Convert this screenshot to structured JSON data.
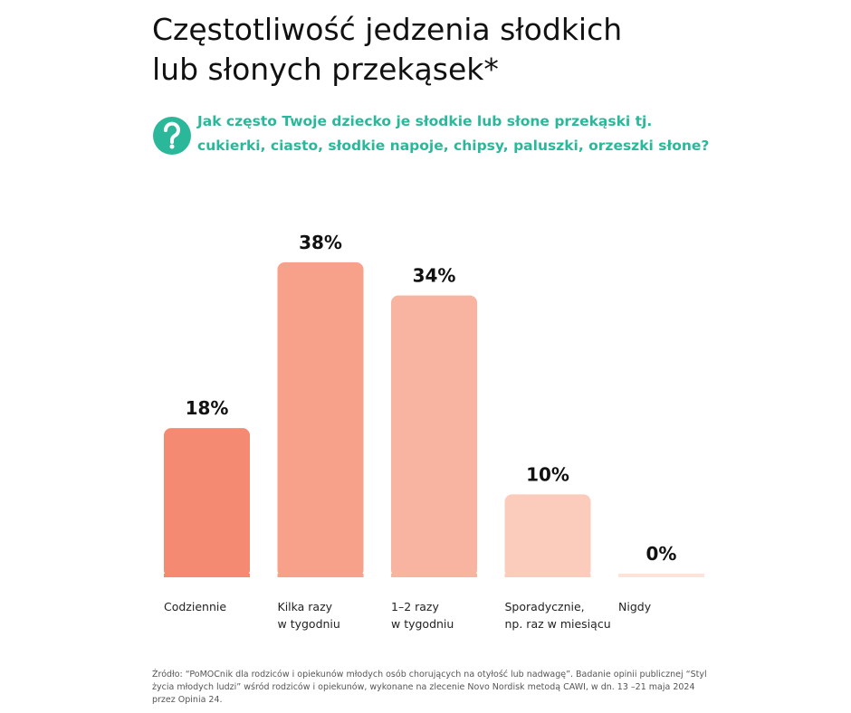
{
  "chart_data": {
    "type": "bar",
    "title": [
      "Częstotliwość jedzenia słodkich",
      "lub słonych przekąsek*"
    ],
    "subtitle": [
      "Jak często Twoje dziecko je słodkie lub słone przekąski tj.",
      "cukierki, ciasto, słodkie napoje, chipsy, paluszki, orzeszki słone?"
    ],
    "categories": [
      [
        "Codziennie"
      ],
      [
        "Kilka razy",
        "w tygodniu"
      ],
      [
        "1–2 razy",
        "w tygodniu"
      ],
      [
        "Sporadycznie,",
        "np. raz w miesiącu"
      ],
      [
        "Nigdy"
      ]
    ],
    "values": [
      18,
      38,
      34,
      10,
      0
    ],
    "value_labels": [
      "18%",
      "38%",
      "34%",
      "10%",
      "0%"
    ],
    "colors": [
      "#f58a72",
      "#f7a08a",
      "#f8b4a0",
      "#fbcbbb",
      "#fce4db"
    ],
    "source": [
      "Źródło: “PoMOCnik dla rodziców i opiekunów młodych osób chorujących na otyłość lub nadwagę”. Badanie opinii publicznej “Styl",
      "życia młodych ludzi” wśród rodziców i opiekunów, wykonane na zlecenie Novo Nordisk metodą CAWI, w dn. 13 –21 maja 2024",
      "przez Opinia 24."
    ]
  }
}
